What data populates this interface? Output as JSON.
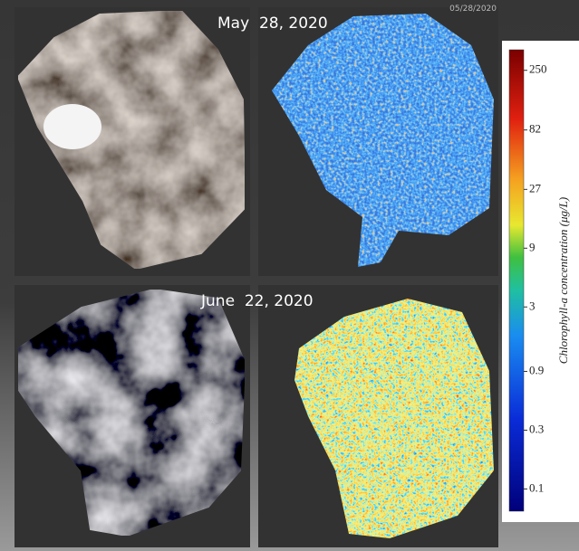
{
  "panels": [
    {
      "date": "May  28, 2020",
      "stamp": "05/28/2020"
    },
    {
      "date": "June  22, 2020"
    }
  ],
  "colorbar": {
    "label": "Chlorophyll-a concentration (μg/L)",
    "log": true,
    "lim": [
      0.066,
      367
    ],
    "ticks": [
      0.1,
      0.3,
      0.9,
      3,
      9,
      27,
      82,
      250
    ]
  }
}
